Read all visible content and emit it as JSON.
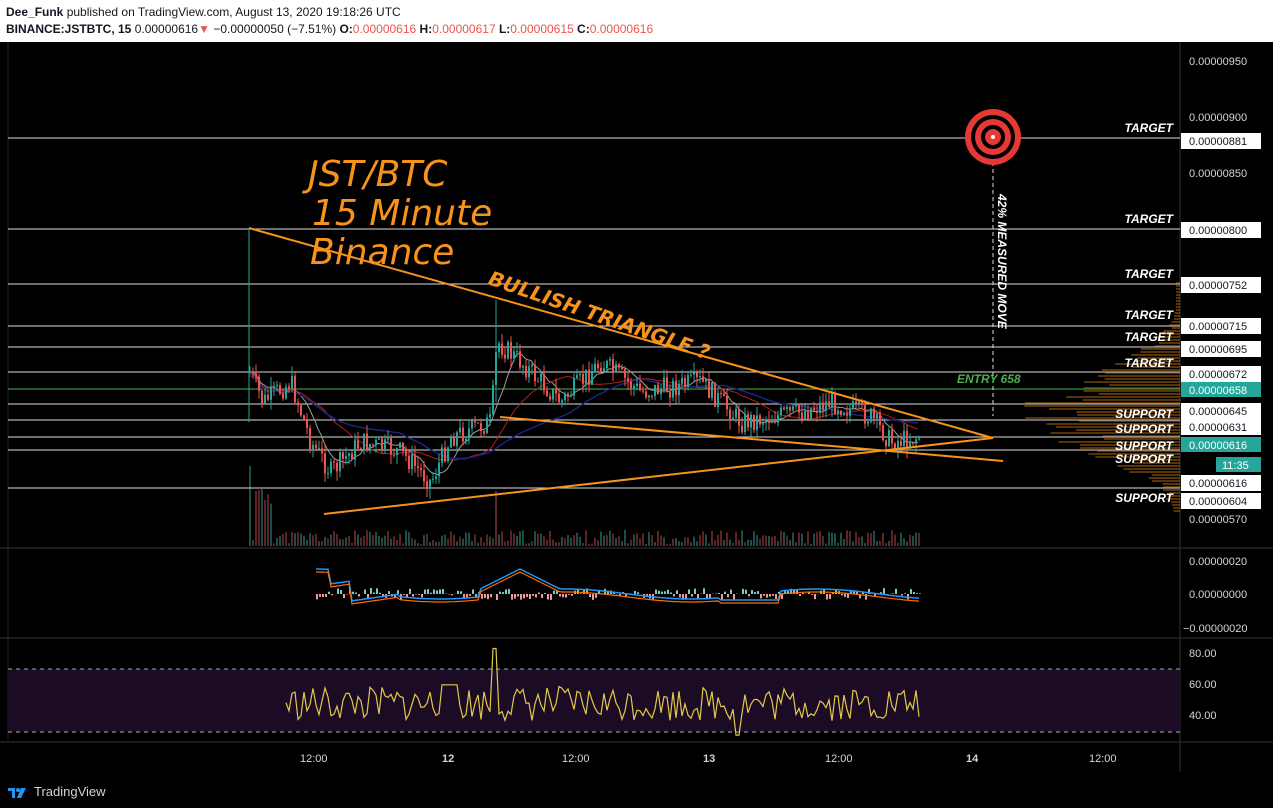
{
  "header": {
    "author": "Dee_Funk",
    "published": "published on TradingView.com, August 13, 2020 19:18:26 UTC",
    "symbol": "BINANCE:JSTBTC, 15",
    "last": "0.00000616",
    "change": "−0.00000050 (−7.51%)",
    "o_label": "O:",
    "o": "0.00000616",
    "h_label": "H:",
    "h": "0.00000617",
    "l_label": "L:",
    "l": "0.00000615",
    "c_label": "C:",
    "c": "0.00000616"
  },
  "annotations": {
    "title_lines": [
      "JST/BTC",
      "15 Minute",
      "Binance"
    ],
    "triangle_label": "BULLISH TRIANGLE ?",
    "measured_move": "42% MEASURED MOVE",
    "entry": "ENTRY 658"
  },
  "levels": [
    {
      "label": "TARGET",
      "value": "0.00000881"
    },
    {
      "label": "TARGET",
      "value": "0.00000800"
    },
    {
      "label": "TARGET",
      "value": "0.00000752"
    },
    {
      "label": "TARGET",
      "value": "0.00000715"
    },
    {
      "label": "TARGET",
      "value": "0.00000695"
    },
    {
      "label": "TARGET",
      "value": "0.00000672"
    },
    {
      "label": "SUPPORT",
      "value": "0.00000645"
    },
    {
      "label": "SUPPORT",
      "value": "0.00000631"
    },
    {
      "label": "SUPPORT",
      "value": "0.00000616"
    },
    {
      "label": "SUPPORT",
      "value": "0.00000616"
    },
    {
      "label": "SUPPORT",
      "value": "0.00000604"
    }
  ],
  "price_axis": {
    "ticks": [
      "0.00000950",
      "0.00000900",
      "0.00000850",
      "0.00000570"
    ],
    "entry_value": "0.00000658",
    "current_value": "0.00000616",
    "countdown": "11:35"
  },
  "macd_axis": [
    "0.00000020",
    "0.00000000",
    "−0.00000020"
  ],
  "rsi_axis": [
    "80.00",
    "60.00",
    "40.00"
  ],
  "time_axis": [
    "12:00",
    "12",
    "12:00",
    "13",
    "12:00",
    "14",
    "12:00"
  ],
  "colors": {
    "orange": "#f7931a",
    "target_red": "#e53935",
    "entry_green": "#4caf50",
    "teal": "#26a69a",
    "candle_down": "#ef5350",
    "rsi_line": "#e2c94a"
  },
  "footer": {
    "brand": "TradingView"
  }
}
